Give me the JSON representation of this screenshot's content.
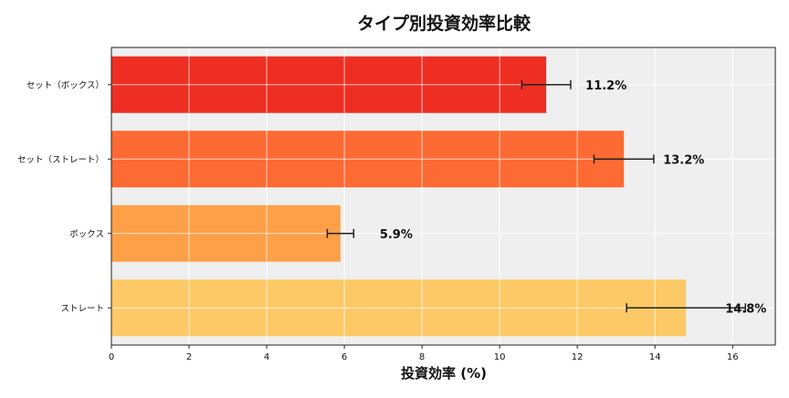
{
  "chart_data": {
    "type": "bar",
    "orientation": "horizontal",
    "title": "タイプ別投資効率比較",
    "xlabel": "投資効率 (%)",
    "ylabel": "",
    "xlim": [
      0,
      17.1
    ],
    "xticks": [
      0,
      2,
      4,
      6,
      8,
      10,
      12,
      14,
      16
    ],
    "grid": true,
    "categories": [
      "セット（ボックス）",
      "セット（ストレート）",
      "ボックス",
      "ストレート"
    ],
    "values": [
      11.2,
      13.2,
      5.9,
      14.8
    ],
    "error": [
      0.63,
      0.77,
      0.34,
      1.53
    ],
    "data_labels": [
      "11.2%",
      "13.2%",
      "5.9%",
      "14.8%"
    ],
    "colors": [
      "#EE2E22",
      "#FD6A33",
      "#FDA048",
      "#FDC967"
    ],
    "background": "#EFEFEF"
  }
}
